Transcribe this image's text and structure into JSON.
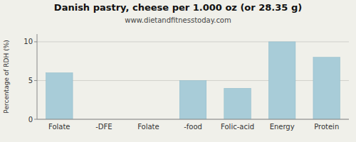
{
  "chart_data": {
    "type": "bar",
    "title": "Danish pastry, cheese per 1.000 oz (or 28.35 g)",
    "subtitle": "www.dietandfitnesstoday.com",
    "categories": [
      "Folate",
      "-DFE",
      "Folate",
      "-food",
      "Folic-acid",
      "Energy",
      "Protein"
    ],
    "values": [
      6,
      0,
      0,
      5,
      4,
      10,
      8
    ],
    "color": "#a8ccd8",
    "y_label": "Percentage of RDH (%)",
    "ylim": [
      0,
      11
    ],
    "yticks": [
      0,
      5,
      10
    ],
    "grid": true
  }
}
